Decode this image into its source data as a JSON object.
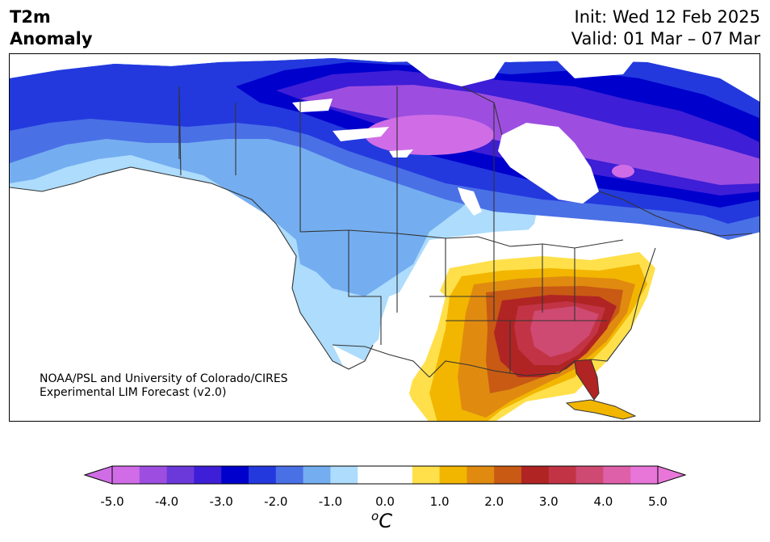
{
  "header": {
    "title_line1": "T2m",
    "title_line2": "Anomaly",
    "init_text": "Init: Wed 12 Feb 2025",
    "valid_text": "Valid: 01 Mar – 07 Mar"
  },
  "credit": {
    "line1": "NOAA/PSL and University of Colorado/CIRES",
    "line2": "Experimental LIM Forecast (v2.0)"
  },
  "colorbar": {
    "ticks": [
      "-5.0",
      "-4.0",
      "-3.0",
      "-2.0",
      "-1.0",
      "0.0",
      "1.0",
      "2.0",
      "3.0",
      "4.0",
      "5.0"
    ],
    "unit_base": "C",
    "unit_sup": "o",
    "colors": [
      "#d06de6",
      "#9d4ee0",
      "#6b38da",
      "#3e1ed6",
      "#0000cd",
      "#2339de",
      "#4a70e6",
      "#74aef0",
      "#addcfd",
      "#ffffff",
      "#ffffff",
      "#ffe04a",
      "#f2b600",
      "#e08b10",
      "#c85a14",
      "#b02424",
      "#c23445",
      "#cf4a72",
      "#de60a8",
      "#e876d8"
    ]
  },
  "map": {
    "region": "North America",
    "colors": {
      "deep_purple": "#9d4ee0",
      "magenta": "#d06de6",
      "violet": "#3e1ed6",
      "navy": "#0000cd",
      "blue": "#2339de",
      "mid_blue": "#4a70e6",
      "light_blue": "#74aef0",
      "pale_blue": "#addcfd",
      "yellow": "#ffe04a",
      "gold": "#f2b600",
      "orange": "#e08b10",
      "dark_orange": "#c85a14",
      "red": "#b02424",
      "crimson": "#c23445",
      "pink": "#cf4a72"
    }
  }
}
